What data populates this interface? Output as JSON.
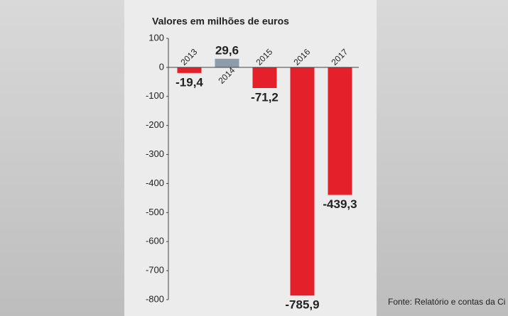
{
  "chart_data": {
    "type": "bar",
    "title": "Valores em milhões de euros",
    "categories": [
      "2013",
      "2014",
      "2015",
      "2016",
      "2017"
    ],
    "values": [
      -19.4,
      29.6,
      -71.2,
      -785.9,
      -439.3
    ],
    "value_labels": [
      "-19,4",
      "29,6",
      "-71,2",
      "-785,9",
      "-439,3"
    ],
    "colors": [
      "#e4202a",
      "#8d9cab",
      "#e4202a",
      "#e4202a",
      "#e4202a"
    ],
    "ylim": [
      -800,
      100
    ],
    "yticks": [
      100,
      0,
      -100,
      -200,
      -300,
      -400,
      -500,
      -600,
      -700,
      -800
    ],
    "source": "Fonte: Relatório e contas da Ci"
  }
}
